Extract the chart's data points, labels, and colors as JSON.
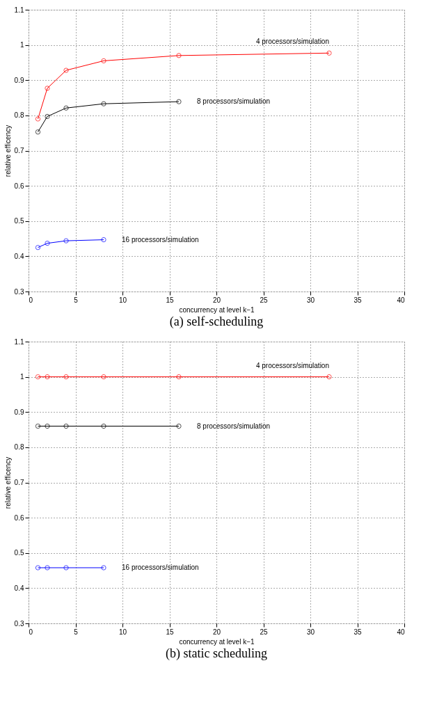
{
  "chart_data": [
    {
      "type": "line",
      "title": "(a) self-scheduling",
      "xlabel": "concurrency at level k−1",
      "ylabel": "relative efficency",
      "xlim": [
        0,
        40
      ],
      "xticks": [
        0,
        5,
        10,
        15,
        20,
        25,
        30,
        35,
        40
      ],
      "ylim": [
        0.3,
        1.1
      ],
      "yticks": [
        0.3,
        0.4,
        0.5,
        0.6,
        0.7,
        0.8,
        0.9,
        1,
        1.1
      ],
      "grid": true,
      "marker": "circle",
      "line_style": "solid",
      "x": [
        1,
        2,
        4,
        8,
        16,
        32
      ],
      "series": [
        {
          "name": "4 processors/simulation",
          "color": "#ff0000",
          "values": [
            0.79,
            0.877,
            0.928,
            0.955,
            0.97,
            0.977
          ]
        },
        {
          "name": "8 processors/simulation",
          "color": "#000000",
          "values": [
            0.753,
            0.797,
            0.821,
            0.833,
            0.839,
            null
          ]
        },
        {
          "name": "16 processors/simulation",
          "color": "#0000ff",
          "values": [
            0.425,
            0.437,
            0.444,
            0.447,
            null,
            null
          ]
        }
      ]
    },
    {
      "type": "line",
      "title": "(b) static scheduling",
      "xlabel": "concurrency at level k−1",
      "ylabel": "relative efficency",
      "xlim": [
        0,
        40
      ],
      "xticks": [
        0,
        5,
        10,
        15,
        20,
        25,
        30,
        35,
        40
      ],
      "ylim": [
        0.3,
        1.1
      ],
      "yticks": [
        0.3,
        0.4,
        0.5,
        0.6,
        0.7,
        0.8,
        0.9,
        1,
        1.1
      ],
      "grid": true,
      "marker": "circle",
      "line_style": "solid",
      "x": [
        1,
        2,
        4,
        8,
        16,
        32
      ],
      "series": [
        {
          "name": "4 processors/simulation",
          "color": "#ff0000",
          "values": [
            1,
            1,
            1,
            1,
            1,
            1
          ]
        },
        {
          "name": "8 processors/simulation",
          "color": "#000000",
          "values": [
            0.86,
            0.86,
            0.86,
            0.86,
            0.86,
            null
          ]
        },
        {
          "name": "16 processors/simulation",
          "color": "#0000ff",
          "values": [
            0.458,
            0.458,
            0.458,
            0.458,
            null,
            null
          ]
        }
      ]
    }
  ]
}
